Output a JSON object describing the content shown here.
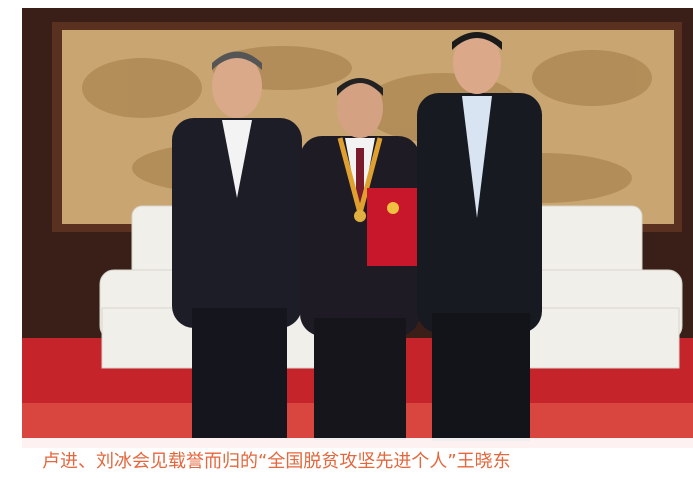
{
  "caption": "卢进、刘冰会见载誉而归的“全国脱贫攻坚先进个人”王晓东"
}
